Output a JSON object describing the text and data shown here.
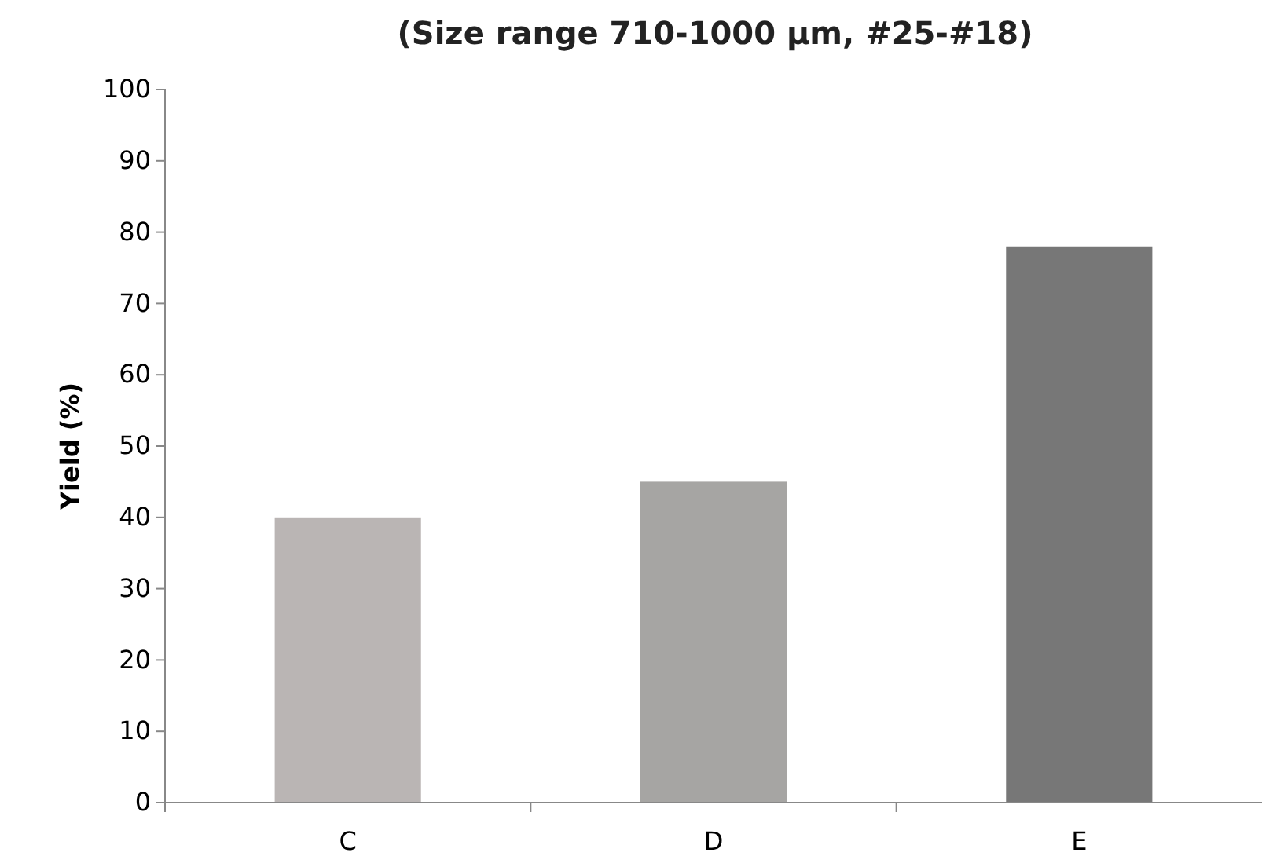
{
  "chart_data": {
    "type": "bar",
    "title": "(Size range 710-1000 µm, #25-#18)",
    "ylabel": "Yield (%)",
    "categories": [
      "C",
      "D",
      "E"
    ],
    "values": [
      40,
      45,
      78
    ],
    "colors": [
      "#bab5b4",
      "#a6a5a3",
      "#777777"
    ],
    "ylim": [
      0,
      100
    ],
    "yticks": [
      0,
      10,
      20,
      30,
      40,
      50,
      60,
      70,
      80,
      90,
      100
    ],
    "grid": false
  }
}
